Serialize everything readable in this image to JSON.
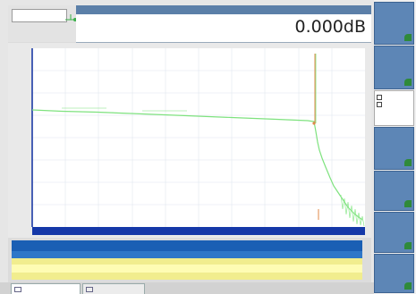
{
  "header": {
    "title": "",
    "subtitle": "",
    "marker_a": "",
    "marker_b": "",
    "marker_ab": "",
    "loss_value": "0.000dB"
  },
  "graph": {
    "event_marker_label": "",
    "event_label": "",
    "grid": true,
    "colors": {
      "trace": "#7ee27e",
      "cursor": "#e0884a",
      "axis": "#0f2fa0",
      "grid": "#ffffff"
    },
    "x_ticks": [
      "",
      "",
      "",
      "",
      "",
      "",
      "",
      "",
      "",
      "",
      ""
    ],
    "y_ticks": [
      "",
      "",
      "",
      "",
      "",
      "",
      "",
      ""
    ]
  },
  "status": {
    "left_text": "",
    "right_text": ""
  },
  "table": {
    "header_text": "",
    "row": {
      "index": "",
      "type": "",
      "distance": "",
      "loss": "",
      "reflectance": "",
      "cumulative": "",
      "slope": ""
    }
  },
  "right_panel": {
    "buttons": [
      {
        "label": "",
        "icon": "expand-icon"
      },
      {
        "label": "",
        "icon": "zoom-icon"
      },
      {
        "label": "",
        "icon": "move-icon"
      },
      {
        "label": "",
        "icon": "zoom-auto-icon"
      },
      {
        "label": "",
        "icon": "full-scale-icon"
      },
      {
        "label": "",
        "icon": "advanced-icon"
      }
    ],
    "mode_options": [
      {
        "label": ""
      },
      {
        "label": ""
      }
    ]
  },
  "tabs": [
    {
      "label": "",
      "active": true
    },
    {
      "label": "",
      "active": false
    }
  ]
}
